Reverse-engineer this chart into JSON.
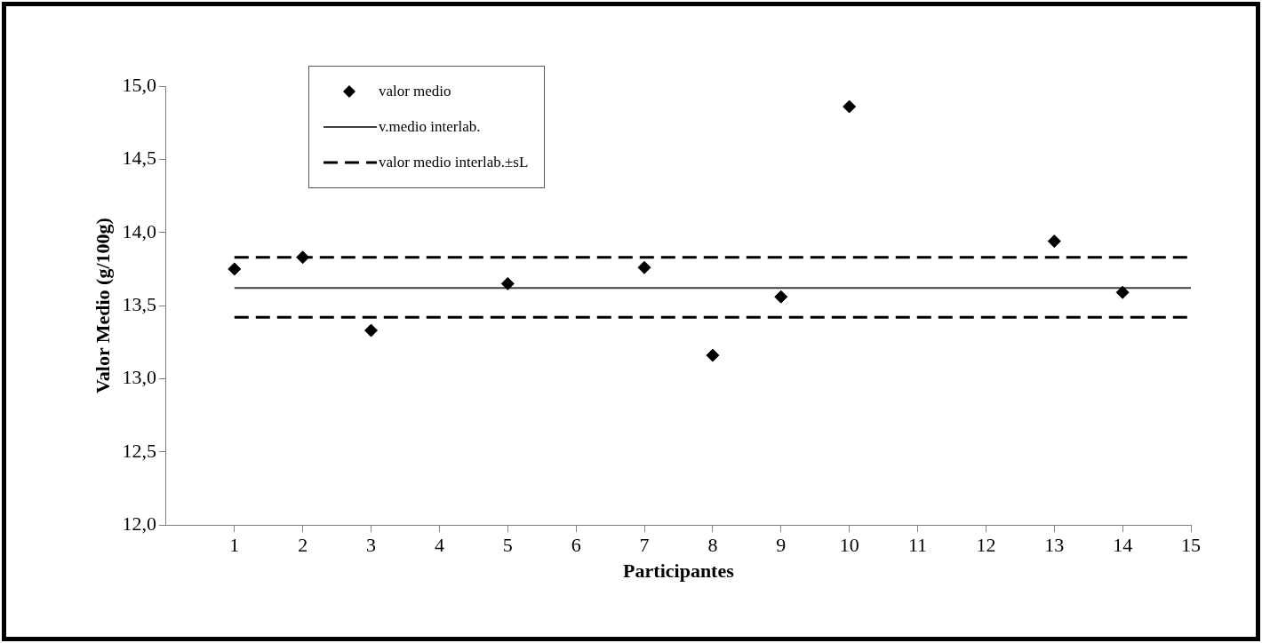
{
  "chart_data": {
    "type": "scatter",
    "xlabel": "Participantes",
    "ylabel": "Valor Medio (g/100g)",
    "xlim": [
      0,
      15
    ],
    "xticks": [
      1,
      2,
      3,
      4,
      5,
      6,
      7,
      8,
      9,
      10,
      11,
      12,
      13,
      14,
      15
    ],
    "ylim": [
      12,
      15
    ],
    "yticks": [
      {
        "value": 12,
        "label": "12,0"
      },
      {
        "value": 12.5,
        "label": "12,5"
      },
      {
        "value": 13,
        "label": "13,0"
      },
      {
        "value": 13.5,
        "label": "13,5"
      },
      {
        "value": 14,
        "label": "14,0"
      },
      {
        "value": 14.5,
        "label": "14,5"
      },
      {
        "value": 15,
        "label": "15,0"
      }
    ],
    "grid": false,
    "legend": "top left",
    "series": [
      {
        "name": "valor medio",
        "type": "scatter",
        "marker": "diamond",
        "color": "#000000",
        "x": [
          1,
          2,
          3,
          5,
          7,
          8,
          9,
          10,
          13,
          14
        ],
        "values": [
          13.75,
          13.83,
          13.33,
          13.65,
          13.76,
          13.16,
          13.56,
          14.86,
          13.94,
          13.59
        ]
      },
      {
        "name": "v.medio interlab.",
        "type": "line",
        "line_style": "solid",
        "marker": "none",
        "color": "#404040",
        "x": [
          1,
          15
        ],
        "values": [
          13.62,
          13.62
        ]
      },
      {
        "name": "valor medio interlab.±sL",
        "type": "line",
        "line_style": "dashed",
        "marker": "none",
        "color": "#000000",
        "x": [
          1,
          15
        ],
        "values": [
          13.83,
          13.83
        ]
      },
      {
        "type": "line",
        "line_style": "dashed",
        "marker": "none",
        "color": "#000000",
        "x": [
          1,
          15
        ],
        "values": [
          13.42,
          13.42
        ]
      }
    ]
  }
}
